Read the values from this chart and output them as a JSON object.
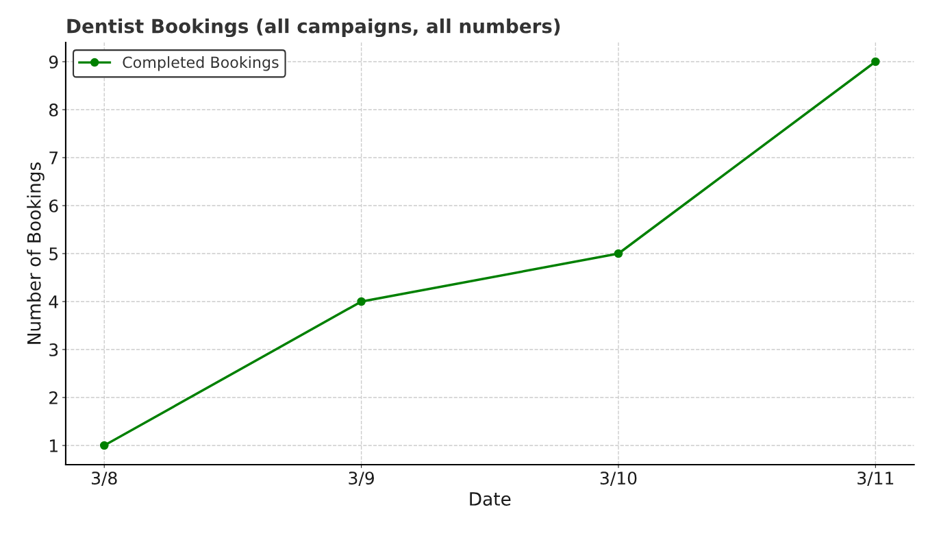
{
  "chart_data": {
    "type": "line",
    "title": "Dentist Bookings (all campaigns, all numbers)",
    "xlabel": "Date",
    "ylabel": "Number of Bookings",
    "categories": [
      "3/8",
      "3/9",
      "3/10",
      "3/11"
    ],
    "series": [
      {
        "name": "Completed Bookings",
        "color": "#008000",
        "values": [
          1,
          4,
          5,
          9
        ]
      }
    ],
    "ylim": [
      0.6,
      9.4
    ],
    "yticks": [
      1,
      2,
      3,
      4,
      5,
      6,
      7,
      8,
      9
    ],
    "grid": true,
    "legend": "top left",
    "marker": "circle",
    "line_style": "solid"
  }
}
